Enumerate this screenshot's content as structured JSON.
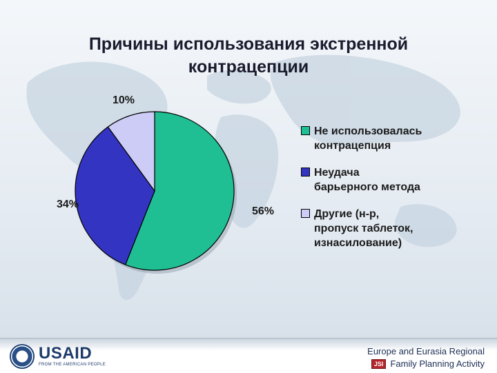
{
  "slide": {
    "title_line1": "Причины использования экстренной",
    "title_line2": "контрацепции"
  },
  "chart_data": {
    "type": "pie",
    "values": [
      56,
      34,
      10
    ],
    "labels": [
      "56%",
      "34%",
      "10%"
    ],
    "categories": [
      "Не использовалась\nконтрацепция",
      "Неудача\nбарьерного метода",
      "Другие  (н-р,\nпропуск таблеток,\nизнасилование)"
    ],
    "colors": [
      "#1fbf93",
      "#3434c2",
      "#ccccf7"
    ],
    "legend_position": "right"
  },
  "footer": {
    "usaid_name": "USAID",
    "usaid_tagline": "FROM THE AMERICAN PEOPLE",
    "org_line1": "Europe and Eurasia Regional",
    "org_line2": "Family Planning Activity",
    "jsi_badge": "JSI"
  },
  "icons": {
    "usaid_seal": "usaid-seal-icon",
    "jsi_logo": "jsi-logo-icon"
  }
}
